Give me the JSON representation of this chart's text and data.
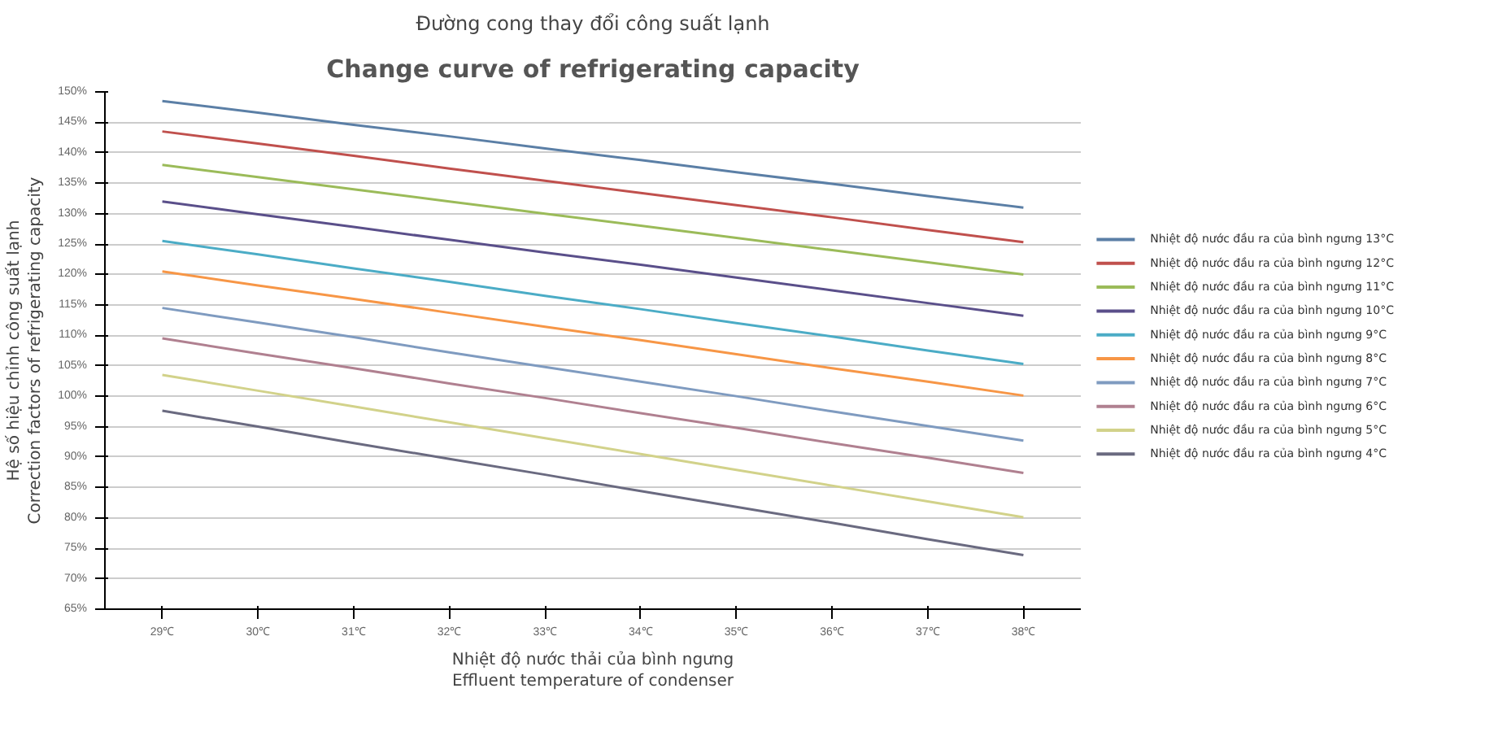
{
  "chart_data": {
    "type": "line",
    "title": "Đường cong thay đổi công suất lạnh",
    "subtitle": "Change curve of refrigerating capacity",
    "xlabel": "Nhiệt độ nước thải của bình ngưng\nEffluent temperature of condenser",
    "ylabel": "Hệ số hiệu chỉnh công suất lạnh\nCorrection factors of refrigerating capacity",
    "categories": [
      "29℃",
      "30℃",
      "31℃",
      "32℃",
      "33℃",
      "34℃",
      "35℃",
      "36℃",
      "37℃",
      "38℃"
    ],
    "ylim": [
      65,
      150
    ],
    "yticks": [
      {
        "value": 65,
        "label": "65%"
      },
      {
        "value": 70,
        "label": "70%"
      },
      {
        "value": 75,
        "label": "75%"
      },
      {
        "value": 80,
        "label": "80%"
      },
      {
        "value": 85,
        "label": "85%"
      },
      {
        "value": 90,
        "label": "90%"
      },
      {
        "value": 95,
        "label": "95%"
      },
      {
        "value": 100,
        "label": "100%"
      },
      {
        "value": 105,
        "label": "105%"
      },
      {
        "value": 110,
        "label": "110%"
      },
      {
        "value": 115,
        "label": "115%"
      },
      {
        "value": 120,
        "label": "120%"
      },
      {
        "value": 125,
        "label": "125%"
      },
      {
        "value": 130,
        "label": "130%"
      },
      {
        "value": 135,
        "label": "135%"
      },
      {
        "value": 140,
        "label": "140%"
      },
      {
        "value": 145,
        "label": "145%"
      },
      {
        "value": 150,
        "label": "150%"
      }
    ],
    "grid": "y",
    "legend": "right",
    "marker": "none",
    "line_style": "solid",
    "series": [
      {
        "name": "Nhiệt độ nước đầu ra của bình ngưng 13°C",
        "color": "#5b7fa6",
        "values": [
          148.5,
          146.6,
          144.6,
          142.7,
          140.7,
          138.8,
          136.8,
          134.9,
          132.9,
          131.0
        ]
      },
      {
        "name": "Nhiệt độ nước đầu ra của bình ngưng 12°C",
        "color": "#c0504d",
        "values": [
          143.5,
          141.5,
          139.5,
          137.4,
          135.4,
          133.4,
          131.4,
          129.4,
          127.3,
          125.3
        ]
      },
      {
        "name": "Nhiệt độ nước đầu ra của bình ngưng 11°C",
        "color": "#9bbb59",
        "values": [
          138.0,
          136.0,
          134.0,
          132.0,
          130.0,
          128.0,
          126.0,
          124.0,
          122.0,
          120.0
        ]
      },
      {
        "name": "Nhiệt độ nước đầu ra của bình ngưng 10°C",
        "color": "#5a4f8a",
        "values": [
          132.0,
          129.9,
          127.8,
          125.7,
          123.6,
          121.6,
          119.5,
          117.4,
          115.3,
          113.2
        ]
      },
      {
        "name": "Nhiệt độ nước đầu ra của bình ngưng 9°C",
        "color": "#4bacc6",
        "values": [
          125.5,
          123.3,
          121.0,
          118.8,
          116.5,
          114.3,
          112.0,
          109.8,
          107.5,
          105.3
        ]
      },
      {
        "name": "Nhiệt độ nước đầu ra của bình ngưng 8°C",
        "color": "#f79646",
        "values": [
          120.5,
          118.2,
          116.0,
          113.7,
          111.4,
          109.2,
          106.9,
          104.6,
          102.4,
          100.1
        ]
      },
      {
        "name": "Nhiệt độ nước đầu ra của bình ngưng 7°C",
        "color": "#7f9bc0",
        "values": [
          114.5,
          112.1,
          109.7,
          107.2,
          104.8,
          102.4,
          100.0,
          97.5,
          95.1,
          92.7
        ]
      },
      {
        "name": "Nhiệt độ nước đầu ra của bình ngưng 6°C",
        "color": "#b08090",
        "values": [
          109.5,
          107.0,
          104.6,
          102.1,
          99.7,
          97.2,
          94.8,
          92.3,
          89.9,
          87.4
        ]
      },
      {
        "name": "Nhiệt độ nước đầu ra của bình ngưng 5°C",
        "color": "#d2d28a",
        "values": [
          103.5,
          100.9,
          98.3,
          95.7,
          93.1,
          90.5,
          87.9,
          85.3,
          82.7,
          80.1
        ]
      },
      {
        "name": "Nhiệt độ nước đầu ra của bình ngưng 4°C",
        "color": "#6a6a80",
        "values": [
          97.6,
          95.0,
          92.3,
          89.7,
          87.1,
          84.4,
          81.8,
          79.2,
          76.5,
          73.9
        ]
      }
    ]
  }
}
